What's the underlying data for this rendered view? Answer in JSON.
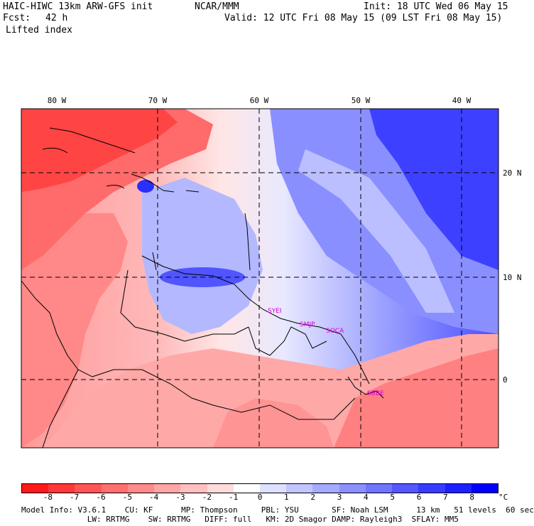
{
  "header": {
    "model": "HAIC-HIWC 13km ARW-GFS init",
    "org": "NCAR/MMM",
    "init": "Init: 18 UTC Wed 06 May 15",
    "fcst_label": "Fcst:",
    "fcst_value": "42 h",
    "valid": "Valid: 12 UTC Fri 08 May 15 (09 LST Fri 08 May 15)",
    "field": "Lifted index"
  },
  "map": {
    "lon_labels": [
      "80 W",
      "70 W",
      "60 W",
      "50 W",
      "40 W"
    ],
    "lat_labels": [
      "20 N",
      "10 N",
      "0"
    ],
    "station_labels": [
      "SYEI",
      "SMJP",
      "SOCA",
      "SBBE"
    ],
    "station_color": "#d400d4",
    "border_color": "#000000"
  },
  "colorbar": {
    "tick_labels": [
      "-8",
      "-7",
      "-6",
      "-5",
      "-4",
      "-3",
      "-2",
      "-1",
      "0",
      "1",
      "2",
      "3",
      "4",
      "5",
      "6",
      "7",
      "8"
    ],
    "unit": "°C",
    "colors": [
      "#ff1a1a",
      "#ff3838",
      "#ff5555",
      "#ff7070",
      "#ff8c8c",
      "#ffa6a6",
      "#ffc0c0",
      "#ffdcdc",
      "#ffffff",
      "#dde0ff",
      "#c2c6ff",
      "#a6abff",
      "#8c90ff",
      "#7075ff",
      "#5458ff",
      "#383cff",
      "#1c1fff",
      "#0000ff"
    ]
  },
  "footer": {
    "line1": "Model Info: V3.6.1    CU: KF      MP: Thompson     PBL: YSU       SF: Noah LSM      13 km   51 levels  60 sec",
    "line2": "              LW: RRTMG    SW: RRTMG   DIFF: full   KM: 2D Smagor DAMP: Rayleigh3  SFLAY: MM5"
  }
}
